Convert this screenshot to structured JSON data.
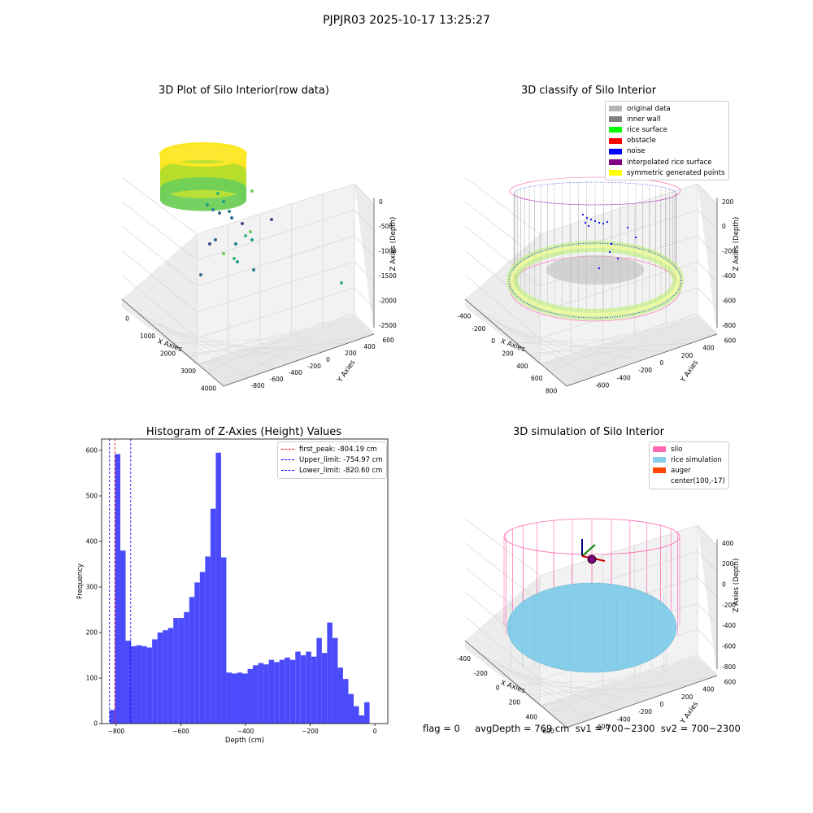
{
  "suptitle": "PJPJR03 2025-10-17 13:25:27",
  "footer": "flag = 0     avgDepth = 769 cm  sv1 = 700~2300  sv2 = 700~2300",
  "colors": {
    "original": "#b5b5b5",
    "inner_wall": "#808080",
    "rice_surface": "#00ff00",
    "obstacle": "#ff0000",
    "noise": "#0000ff",
    "interpolated": "#800080",
    "symmetric": "#ffff00",
    "silo": "#ff69b4",
    "rice_sim": "#87ceeb",
    "auger": "#ff4500",
    "hist_bar": "#4b4bfb"
  },
  "chart_data": [
    {
      "type": "scatter",
      "projection": "3d",
      "title": "3D Plot of Silo Interior(row data)",
      "xlabel": "X Axies",
      "ylabel": "Y Axies",
      "zlabel": "Z Axies (Depth)",
      "x_ticks": [
        "0",
        "1000",
        "2000",
        "3000",
        "4000"
      ],
      "y_ticks": [
        "-800",
        "-600",
        "-400",
        "-200",
        "0",
        "200",
        "400",
        "600"
      ],
      "z_ticks": [
        "0",
        "-500",
        "-1000",
        "-1500",
        "-2000",
        "-2500"
      ],
      "colormap": "viridis"
    },
    {
      "type": "scatter",
      "projection": "3d",
      "title": "3D classify of Silo Interior",
      "xlabel": "X Axies",
      "ylabel": "Y Axies",
      "zlabel": "Z Axies (Depth)",
      "x_ticks": [
        "-400",
        "-200",
        "0",
        "200",
        "400",
        "600",
        "800"
      ],
      "y_ticks": [
        "-600",
        "-400",
        "-200",
        "0",
        "200",
        "400",
        "600"
      ],
      "z_ticks": [
        "200",
        "0",
        "-200",
        "-400",
        "-600",
        "-800"
      ],
      "legend_position": "top-right",
      "legend": [
        {
          "label": "original data",
          "color": "#b5b5b5"
        },
        {
          "label": "inner wall",
          "color": "#808080"
        },
        {
          "label": "rice surface",
          "color": "#00ff00"
        },
        {
          "label": "obstacle",
          "color": "#ff0000"
        },
        {
          "label": "noise",
          "color": "#0000ff"
        },
        {
          "label": "interpolated rice surface",
          "color": "#800080"
        },
        {
          "label": "symmetric generated points",
          "color": "#ffff00"
        }
      ]
    },
    {
      "type": "bar",
      "title": "Histogram of Z-Axies (Height) Values",
      "xlabel": "Depth (cm)",
      "ylabel": "Frequency",
      "xlim": [
        -845,
        40
      ],
      "ylim": [
        0,
        625
      ],
      "x_ticks": [
        -800,
        -600,
        -400,
        -200,
        0
      ],
      "y_ticks": [
        0,
        100,
        200,
        300,
        400,
        500,
        600
      ],
      "bin_start": -820,
      "bin_width": 16.4,
      "values": [
        30,
        592,
        380,
        182,
        170,
        172,
        170,
        167,
        185,
        200,
        205,
        210,
        232,
        232,
        245,
        278,
        310,
        333,
        367,
        472,
        595,
        365,
        112,
        110,
        112,
        110,
        120,
        128,
        133,
        130,
        140,
        135,
        140,
        145,
        140,
        158,
        150,
        158,
        147,
        188,
        155,
        222,
        188,
        123,
        98,
        65,
        38,
        18,
        47
      ],
      "vlines": [
        {
          "label": "first_peak: -804.19 cm",
          "x": -804.19,
          "color": "#ff0000"
        },
        {
          "label": "Upper_limit: -754.97 cm",
          "x": -754.97,
          "color": "#0000ff"
        },
        {
          "label": "Lower_limit: -820.60 cm",
          "x": -820.6,
          "color": "#0000ff"
        }
      ],
      "legend_position": "top-right"
    },
    {
      "type": "scatter",
      "projection": "3d",
      "title": "3D simulation of Silo Interior",
      "xlabel": "X Axies",
      "ylabel": "Y Axies",
      "zlabel": "Z Axies (Depth)",
      "x_ticks": [
        "-400",
        "-200",
        "0",
        "200",
        "400",
        "600"
      ],
      "y_ticks": [
        "-600",
        "-400",
        "-200",
        "0",
        "200",
        "400",
        "600"
      ],
      "z_ticks": [
        "400",
        "200",
        "0",
        "-200",
        "-400",
        "-600",
        "-800"
      ],
      "legend_position": "top-right",
      "legend": [
        {
          "label": "silo",
          "color": "#ff69b4"
        },
        {
          "label": "rice simulation",
          "color": "#87ceeb"
        },
        {
          "label": "auger",
          "color": "#ff4500"
        },
        {
          "label": "center(100,-17)",
          "color": ""
        }
      ]
    }
  ]
}
